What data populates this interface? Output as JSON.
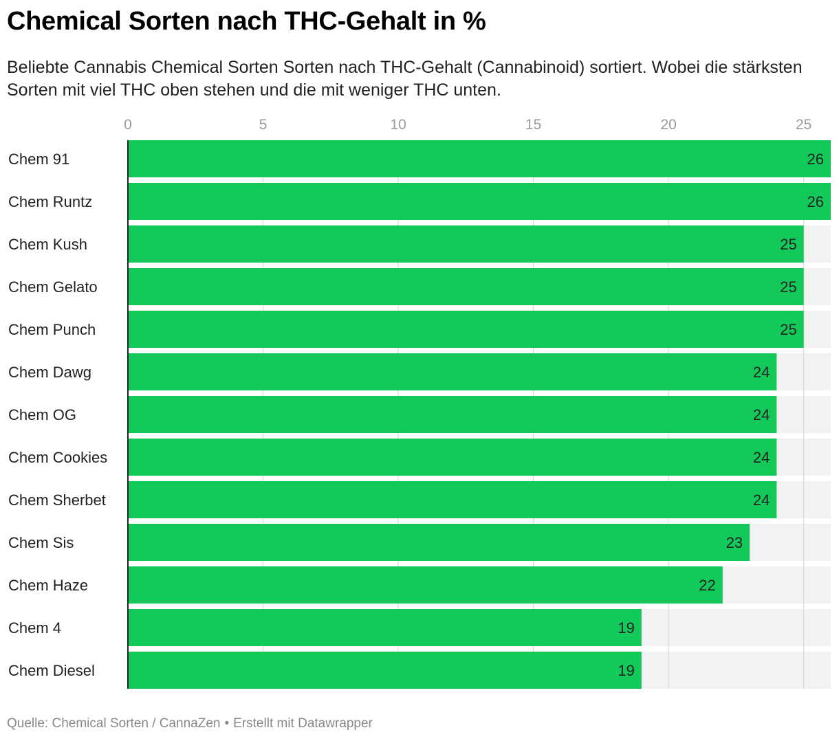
{
  "title": "Chemical Sorten nach THC-Gehalt in %",
  "subtitle": "Beliebte Cannabis Chemical Sorten Sorten nach THC-Gehalt (Cannabinoid) sortiert. Wobei die stärksten Sorten mit viel THC oben stehen und die mit weniger THC unten.",
  "footer": {
    "source": "Quelle: Chemical Sorten / CannaZen",
    "separator": "•",
    "credit": "Erstellt mit Datawrapper"
  },
  "colors": {
    "bar": "#13c95a",
    "background_bar": "#f2f2f2",
    "grid": "#d2d2d2",
    "axis_text": "#9a9a9a",
    "label_text": "#222222"
  },
  "chart_data": {
    "type": "bar",
    "orientation": "horizontal",
    "categories": [
      "Chem 91",
      "Chem Runtz",
      "Chem Kush",
      "Chem Gelato",
      "Chem Punch",
      "Chem Dawg",
      "Chem OG",
      "Chem Cookies",
      "Chem Sherbet",
      "Chem Sis",
      "Chem Haze",
      "Chem 4",
      "Chem Diesel"
    ],
    "values": [
      26,
      26,
      25,
      25,
      25,
      24,
      24,
      24,
      24,
      23,
      22,
      19,
      19
    ],
    "xlim": [
      0,
      26
    ],
    "xticks": [
      0,
      5,
      10,
      15,
      20,
      25
    ],
    "grid": true,
    "data_labels": true
  }
}
